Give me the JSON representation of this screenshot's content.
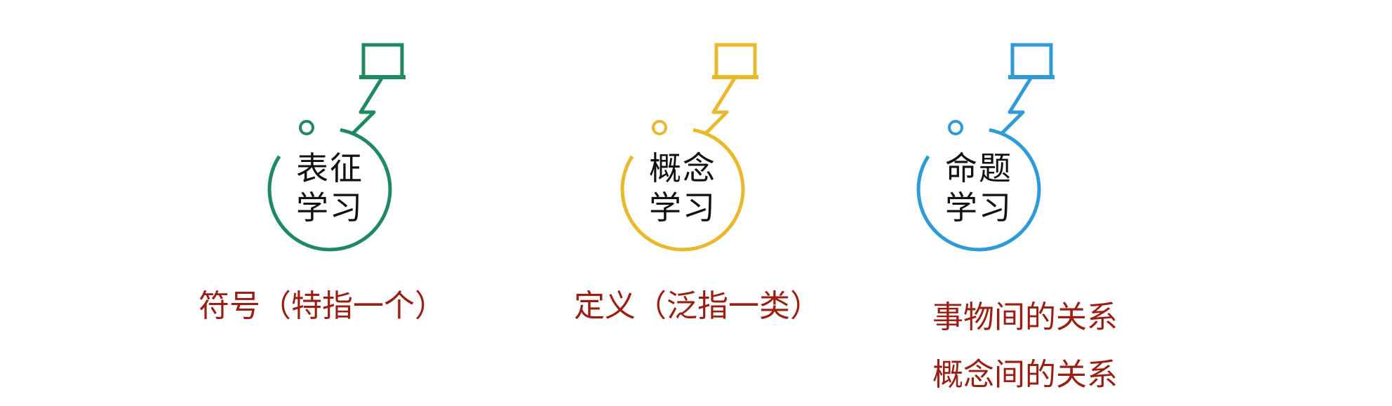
{
  "items": [
    {
      "line1": "表征",
      "line2": "学习",
      "captions": [
        "符号（特指一个）"
      ],
      "color": "#1f8a5f"
    },
    {
      "line1": "概念",
      "line2": "学习",
      "captions": [
        "定义（泛指一类）"
      ],
      "color": "#e8b92c"
    },
    {
      "line1": "命题",
      "line2": "学习",
      "captions": [
        "事物间的关系",
        "概念间的关系"
      ],
      "color": "#2f9bd6"
    }
  ],
  "caption_color": "#9a1e12"
}
